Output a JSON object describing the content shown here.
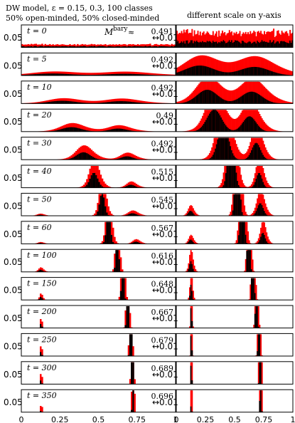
{
  "header": {
    "line1": "DW model, ε = 0.15, 0.3, 100 classes",
    "line2": "50% open-minded, 50% closed-minded",
    "right_title": "different scale on y-axis"
  },
  "colors": {
    "open_minded": "#ff0000",
    "closed_minded": "#000000",
    "frame": "#000000"
  },
  "chart_data": {
    "type": "bar",
    "description_text": [],
    "x_axis": {
      "ticks": [
        "0",
        "0.25",
        "0.5",
        "0.75",
        "1"
      ],
      "range": [
        0,
        1
      ]
    },
    "left_column": {
      "ytick_label": "0.05",
      "ymax": 0.06
    },
    "right_column": {
      "ytick_label": "↔0.01",
      "ymax": 0.012
    },
    "bary_label": "M^bary ≈",
    "panels": [
      {
        "t": "t = 0",
        "bary": "0.491",
        "kind": "uniform"
      },
      {
        "t": "t = 5",
        "bary": "0.492",
        "kind": "smooth",
        "peaks": [
          [
            0.25,
            0.8,
            0.2
          ],
          [
            0.72,
            0.8,
            0.2
          ]
        ]
      },
      {
        "t": "t = 10",
        "bary": "0.492",
        "kind": "smooth",
        "peaks": [
          [
            0.3,
            1.3,
            0.14
          ],
          [
            0.68,
            1.3,
            0.14
          ]
        ]
      },
      {
        "t": "t = 20",
        "bary": "0.49",
        "kind": "smooth",
        "peaks": [
          [
            0.35,
            2.0,
            0.1
          ],
          [
            0.65,
            1.6,
            0.09
          ]
        ]
      },
      {
        "t": "t = 30",
        "bary": "0.492",
        "kind": "smooth",
        "peaks": [
          [
            0.42,
            3.4,
            0.07
          ],
          [
            0.7,
            1.8,
            0.06
          ]
        ]
      },
      {
        "t": "t = 40",
        "bary": "0.515",
        "kind": "smooth",
        "peaks": [
          [
            0.48,
            6.5,
            0.04
          ],
          [
            0.72,
            1.5,
            0.04
          ]
        ]
      },
      {
        "t": "t = 50",
        "bary": "0.545",
        "kind": "smooth",
        "peaks": [
          [
            0.53,
            12,
            0.025
          ],
          [
            0.73,
            1.5,
            0.04
          ],
          [
            0.13,
            0.6,
            0.03
          ]
        ]
      },
      {
        "t": "t = 60",
        "bary": "0.567",
        "kind": "smooth",
        "peaks": [
          [
            0.57,
            16,
            0.02
          ],
          [
            0.75,
            1.3,
            0.03
          ],
          [
            0.13,
            0.5,
            0.025
          ]
        ]
      },
      {
        "t": "t = 100",
        "bary": "0.616",
        "kind": "smooth",
        "peaks": [
          [
            0.625,
            25,
            0.012
          ],
          [
            0.13,
            1.1,
            0.02
          ]
        ]
      },
      {
        "t": "t = 150",
        "bary": "0.648",
        "kind": "smooth",
        "peaks": [
          [
            0.66,
            28,
            0.01
          ],
          [
            0.13,
            1.5,
            0.012
          ]
        ]
      },
      {
        "t": "t = 200",
        "bary": "0.667",
        "kind": "smooth",
        "peaks": [
          [
            0.69,
            30,
            0.008
          ],
          [
            0.13,
            2.5,
            0.006
          ]
        ]
      },
      {
        "t": "t = 250",
        "bary": "0.679",
        "kind": "smooth",
        "peaks": [
          [
            0.71,
            31,
            0.007
          ],
          [
            0.13,
            3,
            0.005
          ]
        ]
      },
      {
        "t": "t = 300",
        "bary": "0.689",
        "kind": "smooth",
        "peaks": [
          [
            0.72,
            32,
            0.006
          ],
          [
            0.13,
            4,
            0.004
          ]
        ]
      },
      {
        "t": "t = 350",
        "bary": "0.696",
        "kind": "smooth",
        "peaks": [
          [
            0.725,
            33,
            0.005
          ],
          [
            0.13,
            5,
            0.003
          ]
        ]
      }
    ]
  }
}
